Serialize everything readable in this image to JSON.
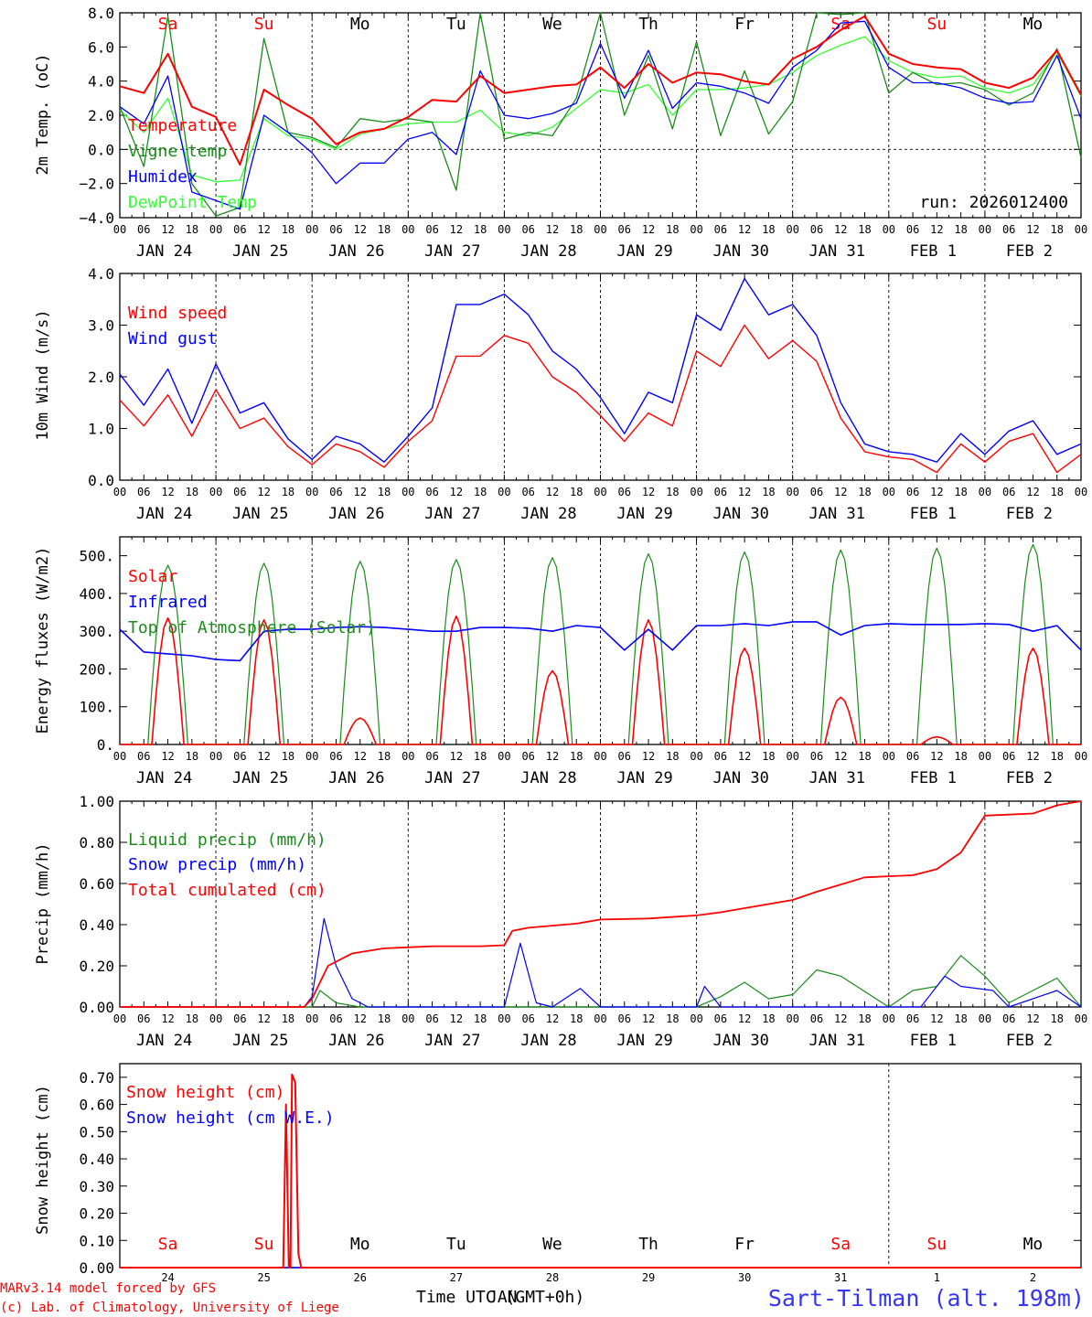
{
  "footer": {
    "credit_line1": "MARv3.14 model forced by GFS",
    "credit_line2": "(c) Lab. of Climatology, University of Liege",
    "station": "Sart-Tilman (alt. 198m)",
    "time_axis_label": "Time UTC (GMT+0h)",
    "time_axis_overlay": "JAN"
  },
  "colors": {
    "red": "#ff0000",
    "green": "#1a8c1a",
    "blue": "#0000ff",
    "lightgreen": "#33ff33",
    "weekend": "#ff0000",
    "weekday": "#000000"
  },
  "days": {
    "date_labels": [
      "JAN 24",
      "JAN 25",
      "JAN 26",
      "JAN 27",
      "JAN 28",
      "JAN 29",
      "JAN 30",
      "JAN 31",
      "FEB  1",
      "FEB  2"
    ],
    "hour_labels": [
      "00",
      "06",
      "12",
      "18"
    ],
    "weekday_labels": [
      "Sa",
      "Su",
      "Mo",
      "Tu",
      "We",
      "Th",
      "Fr",
      "Sa",
      "Su",
      "Mo"
    ],
    "weekend_flags": [
      true,
      true,
      false,
      false,
      false,
      false,
      false,
      true,
      true,
      false
    ],
    "short_dates": [
      "24",
      "25",
      "26",
      "27",
      "28",
      "29",
      "30",
      "31",
      "1",
      "2"
    ]
  },
  "chart_data": [
    {
      "type": "line",
      "id": "temperature",
      "ylabel": "2m Temp. (oC)",
      "ylim": [
        -4,
        8
      ],
      "yticks": [
        "8.0",
        "6.0",
        "4.0",
        "2.0",
        "0.0",
        "−2.0",
        "−4.0"
      ],
      "run_label": "run: 2026012400",
      "x_unit": "hours since JAN 24 00 UTC",
      "series": [
        {
          "name": "Temperature",
          "color": "red",
          "x": [
            0,
            6,
            12,
            18,
            24,
            30,
            36,
            42,
            48,
            54,
            60,
            66,
            72,
            78,
            84,
            90,
            96,
            102,
            108,
            114,
            120,
            126,
            132,
            138,
            144,
            150,
            156,
            162,
            168,
            174,
            180,
            186,
            192,
            198,
            204,
            210,
            216,
            222,
            228,
            234,
            240
          ],
          "y": [
            3.7,
            3.3,
            5.6,
            2.5,
            1.9,
            -0.9,
            3.5,
            2.6,
            1.8,
            0.3,
            1.0,
            1.2,
            1.9,
            2.9,
            2.8,
            4.3,
            3.3,
            3.5,
            3.7,
            3.8,
            4.8,
            3.6,
            5.0,
            3.9,
            4.5,
            4.4,
            4.0,
            3.8,
            5.3,
            6.0,
            7.0,
            7.8,
            5.6,
            5.0,
            4.8,
            4.7,
            3.9,
            3.6,
            4.2,
            5.8,
            3.2
          ]
        },
        {
          "name": "Vigne temp",
          "color": "green",
          "x": [
            0,
            6,
            12,
            18,
            24,
            30,
            36,
            42,
            48,
            54,
            60,
            66,
            72,
            78,
            84,
            90,
            96,
            102,
            108,
            114,
            120,
            126,
            132,
            138,
            144,
            150,
            156,
            162,
            168,
            174,
            180,
            186,
            192,
            198,
            204,
            210,
            216,
            222,
            228,
            234,
            240
          ],
          "y": [
            2.5,
            -1.0,
            7.8,
            -2.0,
            -3.9,
            -3.4,
            6.5,
            1.0,
            0.7,
            0.1,
            1.8,
            1.6,
            1.8,
            1.6,
            -2.4,
            8.2,
            0.6,
            1.0,
            0.8,
            3.0,
            8.3,
            2.0,
            5.5,
            1.2,
            6.3,
            0.8,
            4.6,
            0.9,
            2.8,
            8.2,
            7.9,
            8.0,
            3.3,
            4.5,
            3.8,
            3.9,
            3.5,
            2.6,
            3.3,
            5.9,
            -0.5
          ]
        },
        {
          "name": "Humidex",
          "color": "blue",
          "x": [
            0,
            6,
            12,
            18,
            24,
            30,
            36,
            42,
            48,
            54,
            60,
            66,
            72,
            78,
            84,
            90,
            96,
            102,
            108,
            114,
            120,
            126,
            132,
            138,
            144,
            150,
            156,
            162,
            168,
            174,
            180,
            186,
            192,
            198,
            204,
            210,
            216,
            222,
            228,
            234,
            240
          ],
          "y": [
            2.5,
            1.5,
            4.3,
            -2.5,
            -3.0,
            -3.5,
            2.0,
            1.0,
            -0.2,
            -2.0,
            -0.8,
            -0.8,
            0.6,
            1.0,
            -0.3,
            4.6,
            2.0,
            1.8,
            2.1,
            2.7,
            6.2,
            3.0,
            5.8,
            2.4,
            3.9,
            3.7,
            3.3,
            2.7,
            4.8,
            5.8,
            7.4,
            7.5,
            4.8,
            3.9,
            3.9,
            3.6,
            3.0,
            2.7,
            2.8,
            5.5,
            1.8
          ]
        },
        {
          "name": "DewPoint Temp",
          "color": "lightgreen",
          "x": [
            0,
            6,
            12,
            18,
            24,
            30,
            36,
            42,
            48,
            54,
            60,
            66,
            72,
            78,
            84,
            90,
            96,
            102,
            108,
            114,
            120,
            126,
            132,
            138,
            144,
            150,
            156,
            162,
            168,
            174,
            180,
            186,
            192,
            198,
            204,
            210,
            216,
            222,
            228,
            234,
            240
          ],
          "y": [
            2.3,
            1.0,
            3.0,
            -1.5,
            -1.9,
            -1.8,
            1.8,
            0.8,
            0.6,
            0.0,
            0.9,
            1.2,
            1.5,
            1.6,
            1.6,
            2.3,
            1.0,
            0.8,
            1.3,
            2.4,
            3.5,
            3.3,
            3.8,
            2.0,
            3.5,
            3.5,
            3.6,
            3.8,
            4.5,
            5.5,
            6.1,
            6.6,
            5.2,
            4.5,
            4.2,
            4.3,
            3.6,
            3.3,
            3.8,
            5.7,
            3.1
          ]
        }
      ]
    },
    {
      "type": "line",
      "id": "wind",
      "ylabel": "10m Wind (m/s)",
      "ylim": [
        0,
        4
      ],
      "yticks": [
        "4.0",
        "3.0",
        "2.0",
        "1.0",
        "0.0"
      ],
      "series": [
        {
          "name": "Wind speed",
          "color": "red",
          "x": [
            0,
            6,
            12,
            18,
            24,
            30,
            36,
            42,
            48,
            54,
            60,
            66,
            72,
            78,
            84,
            90,
            96,
            102,
            108,
            114,
            120,
            126,
            132,
            138,
            144,
            150,
            156,
            162,
            168,
            174,
            180,
            186,
            192,
            198,
            204,
            210,
            216,
            222,
            228,
            234,
            240
          ],
          "y": [
            1.55,
            1.05,
            1.65,
            0.85,
            1.75,
            1.0,
            1.2,
            0.65,
            0.3,
            0.7,
            0.55,
            0.25,
            0.75,
            1.15,
            2.4,
            2.4,
            2.8,
            2.65,
            2.0,
            1.7,
            1.25,
            0.75,
            1.3,
            1.05,
            2.5,
            2.2,
            3.0,
            2.35,
            2.7,
            2.3,
            1.2,
            0.55,
            0.45,
            0.4,
            0.15,
            0.7,
            0.35,
            0.75,
            0.9,
            0.15,
            0.5
          ]
        },
        {
          "name": "Wind gust",
          "color": "blue",
          "x": [
            0,
            6,
            12,
            18,
            24,
            30,
            36,
            42,
            48,
            54,
            60,
            66,
            72,
            78,
            84,
            90,
            96,
            102,
            108,
            114,
            120,
            126,
            132,
            138,
            144,
            150,
            156,
            162,
            168,
            174,
            180,
            186,
            192,
            198,
            204,
            210,
            216,
            222,
            228,
            234,
            240
          ],
          "y": [
            2.05,
            1.45,
            2.15,
            1.1,
            2.25,
            1.3,
            1.5,
            0.8,
            0.4,
            0.85,
            0.7,
            0.35,
            0.85,
            1.4,
            3.4,
            3.4,
            3.6,
            3.2,
            2.5,
            2.15,
            1.6,
            0.9,
            1.7,
            1.5,
            3.2,
            2.9,
            3.9,
            3.2,
            3.4,
            2.8,
            1.5,
            0.7,
            0.55,
            0.5,
            0.35,
            0.9,
            0.5,
            0.95,
            1.15,
            0.5,
            0.7
          ]
        }
      ]
    },
    {
      "type": "line",
      "id": "energy",
      "ylabel": "Energy fluxes (W/m2)",
      "ylim": [
        0,
        550
      ],
      "yticks": [
        "500.",
        "400.",
        "300.",
        "200.",
        "100.",
        "0."
      ],
      "series": [
        {
          "name": "Solar",
          "color": "red",
          "daily_peak_W_m2": [
            335,
            330,
            70,
            340,
            195,
            330,
            255,
            125,
            20,
            255
          ]
        },
        {
          "name": "Infrared",
          "color": "blue",
          "x": [
            0,
            6,
            12,
            18,
            24,
            30,
            36,
            42,
            48,
            54,
            60,
            66,
            72,
            78,
            84,
            90,
            96,
            102,
            108,
            114,
            120,
            126,
            132,
            138,
            144,
            150,
            156,
            162,
            168,
            174,
            180,
            186,
            192,
            198,
            204,
            210,
            216,
            222,
            228,
            234,
            240
          ],
          "y": [
            305,
            245,
            240,
            235,
            225,
            222,
            300,
            305,
            305,
            310,
            312,
            310,
            305,
            300,
            300,
            310,
            310,
            308,
            300,
            315,
            310,
            250,
            305,
            250,
            315,
            315,
            320,
            315,
            325,
            325,
            290,
            315,
            320,
            318,
            318,
            318,
            320,
            318,
            300,
            315,
            250
          ]
        },
        {
          "name": "Top of Atmosphere (Solar)",
          "color": "green",
          "daily_peak_W_m2": [
            475,
            480,
            485,
            490,
            495,
            505,
            510,
            515,
            520,
            530
          ]
        }
      ]
    },
    {
      "type": "line",
      "id": "precip",
      "ylabel": "Precip (mm/h)",
      "ylim": [
        0,
        1
      ],
      "yticks": [
        "1.00",
        "0.80",
        "0.60",
        "0.40",
        "0.20",
        "0.00"
      ],
      "series": [
        {
          "name": "Liquid precip (mm/h)",
          "color": "green",
          "x": [
            0,
            48,
            50,
            54,
            60,
            96,
            120,
            144,
            150,
            156,
            162,
            168,
            174,
            180,
            192,
            198,
            204,
            210,
            216,
            222,
            228,
            234,
            240
          ],
          "y": [
            0,
            0,
            0.08,
            0.02,
            0,
            0,
            0,
            0,
            0.05,
            0.12,
            0.04,
            0.06,
            0.18,
            0.15,
            0,
            0.08,
            0.1,
            0.25,
            0.15,
            0.02,
            0.08,
            0.14,
            0
          ]
        },
        {
          "name": "Snow precip (mm/h)",
          "color": "blue",
          "x": [
            0,
            46,
            48,
            51,
            54,
            58,
            62,
            96,
            100,
            104,
            108,
            115,
            120,
            144,
            146,
            150,
            180,
            200,
            206,
            210,
            218,
            222,
            234,
            240
          ],
          "y": [
            0,
            0,
            0.05,
            0.43,
            0.2,
            0.04,
            0,
            0,
            0.31,
            0.02,
            0,
            0.09,
            0,
            0,
            0.1,
            0,
            0,
            0,
            0.15,
            0.1,
            0.08,
            0,
            0.08,
            0
          ]
        },
        {
          "name": "Total cumulated (cm)",
          "color": "red",
          "x": [
            0,
            46,
            48,
            52,
            58,
            66,
            72,
            78,
            90,
            96,
            98,
            102,
            114,
            120,
            132,
            144,
            150,
            156,
            168,
            174,
            186,
            192,
            198,
            204,
            210,
            216,
            228,
            234,
            240
          ],
          "y": [
            0,
            0,
            0.04,
            0.2,
            0.26,
            0.285,
            0.29,
            0.295,
            0.295,
            0.3,
            0.37,
            0.385,
            0.405,
            0.425,
            0.43,
            0.445,
            0.46,
            0.48,
            0.52,
            0.56,
            0.63,
            0.635,
            0.64,
            0.67,
            0.75,
            0.93,
            0.94,
            0.98,
            1.0
          ]
        }
      ]
    },
    {
      "type": "line",
      "id": "snow",
      "ylabel": "Snow height (cm)",
      "ylim": [
        0,
        0.75
      ],
      "yticks": [
        "0.70",
        "0.60",
        "0.50",
        "0.40",
        "0.30",
        "0.20",
        "0.10",
        "0.00"
      ],
      "series": [
        {
          "name": "Snow height (cm)",
          "color": "red",
          "x": [
            0,
            40.8,
            41.5,
            42.2,
            42.6,
            43.0,
            43.8,
            44.6,
            45.3,
            240
          ],
          "y": [
            0,
            0,
            0.6,
            0,
            0,
            0.71,
            0.68,
            0.05,
            0,
            0
          ]
        },
        {
          "name": "Snow height (cm W.E.)",
          "color": "blue",
          "x": [
            0,
            240
          ],
          "y": [
            0,
            0
          ]
        }
      ]
    }
  ]
}
